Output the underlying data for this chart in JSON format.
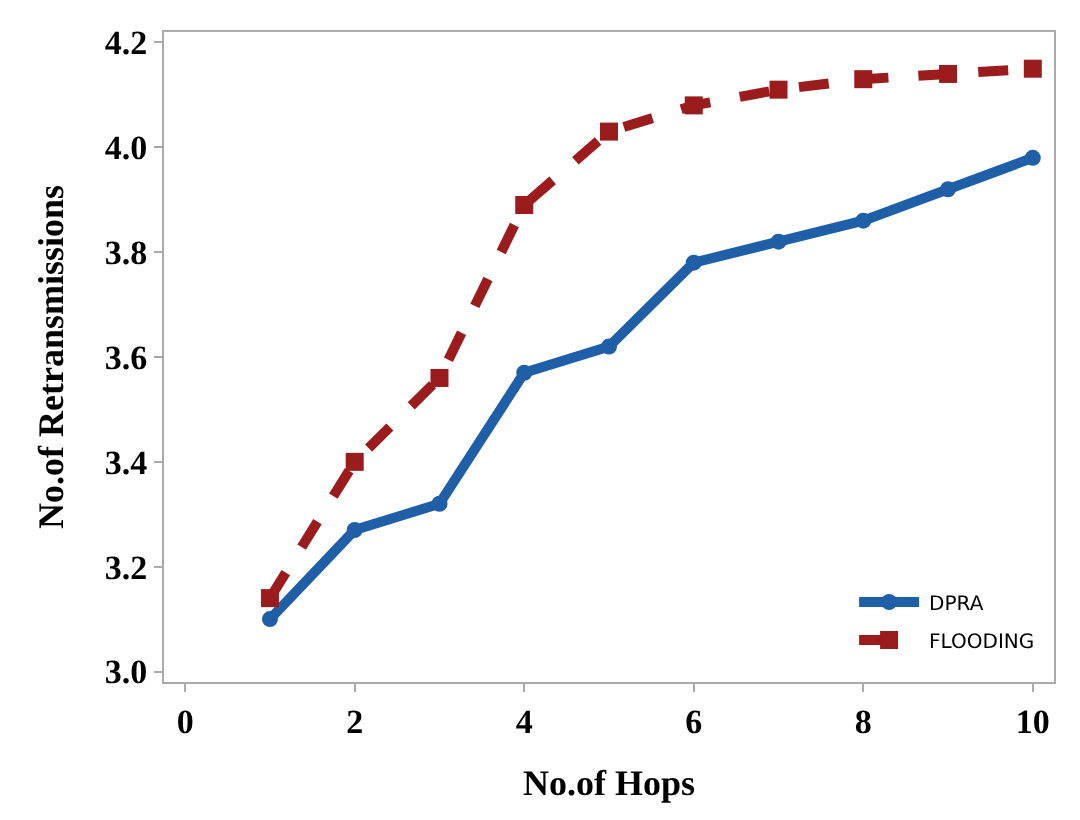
{
  "chart_data": {
    "type": "line",
    "xlabel": "No.of Hops",
    "ylabel": "No.of Retransmissions",
    "x": [
      1,
      2,
      3,
      4,
      5,
      6,
      7,
      8,
      9,
      10
    ],
    "series": [
      {
        "name": "DPRA",
        "color": "#1f5fa8",
        "values": [
          3.1,
          3.27,
          3.32,
          3.57,
          3.62,
          3.78,
          3.82,
          3.86,
          3.92,
          3.98
        ],
        "marker": "circle",
        "line_style": "solid"
      },
      {
        "name": "FLOODING",
        "color": "#9b1c1c",
        "values": [
          3.14,
          3.4,
          3.56,
          3.89,
          4.03,
          4.08,
          4.11,
          4.13,
          4.14,
          4.15
        ],
        "marker": "square",
        "line_style": "dashed"
      }
    ],
    "xlim": [
      -0.25,
      10.25
    ],
    "xticks": [
      0,
      2,
      4,
      6,
      8,
      10
    ],
    "ylim": [
      2.98,
      4.22
    ],
    "yticks": [
      {
        "value": 3.0,
        "label": "3.0"
      },
      {
        "value": 3.2,
        "label": "3.2"
      },
      {
        "value": 3.4,
        "label": "3.4"
      },
      {
        "value": 3.6,
        "label": "3.6"
      },
      {
        "value": 3.8,
        "label": "3.8"
      },
      {
        "value": 4.0,
        "label": "4.0"
      },
      {
        "value": 4.2,
        "label": "4.2"
      }
    ],
    "legend": "bottom right"
  }
}
